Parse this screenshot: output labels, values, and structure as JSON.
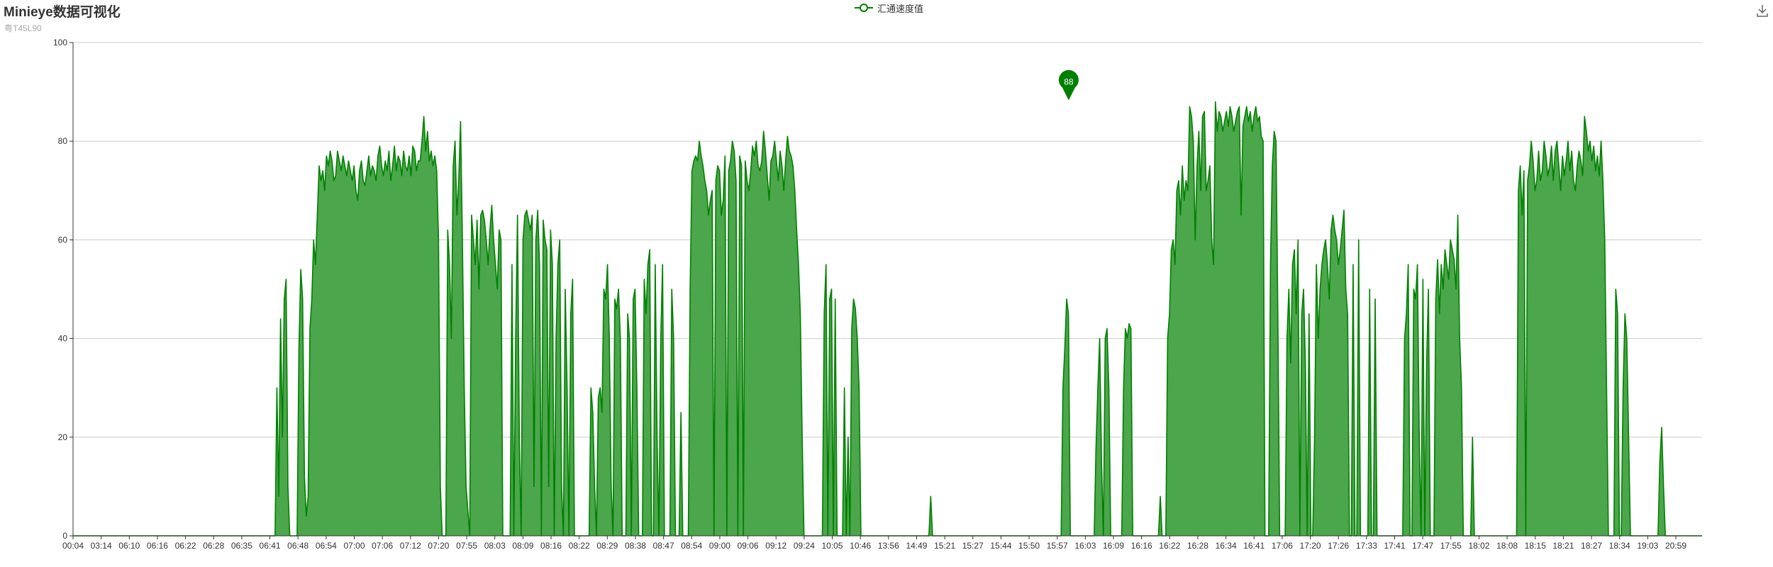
{
  "header": {
    "title": "Minieye数据可视化",
    "subtitle": "粤T45L90"
  },
  "legend": {
    "label": "汇通速度值",
    "icon": "circle-line-icon"
  },
  "toolbox": {
    "icon": "download-icon"
  },
  "colors": {
    "series": "#008000",
    "area": "#4ca64c",
    "grid": "#cccccc",
    "axis": "#333333",
    "marker": "#008000"
  },
  "chart_data": {
    "type": "area",
    "ylim": [
      0,
      100
    ],
    "yticks": [
      0,
      20,
      40,
      60,
      80,
      100
    ],
    "xtick_labels": [
      "00:04",
      "03:14",
      "06:10",
      "06:16",
      "06:22",
      "06:28",
      "06:35",
      "06:41",
      "06:48",
      "06:54",
      "07:00",
      "07:06",
      "07:12",
      "07:20",
      "07:55",
      "08:03",
      "08:09",
      "08:16",
      "08:22",
      "08:29",
      "08:38",
      "08:47",
      "08:54",
      "09:00",
      "09:06",
      "09:12",
      "09:24",
      "10:05",
      "10:46",
      "13:56",
      "14:49",
      "15:21",
      "15:27",
      "15:44",
      "15:50",
      "15:57",
      "16:03",
      "16:09",
      "16:16",
      "16:22",
      "16:28",
      "16:34",
      "16:41",
      "17:06",
      "17:20",
      "17:26",
      "17:33",
      "17:41",
      "17:47",
      "17:55",
      "18:02",
      "18:08",
      "18:15",
      "18:21",
      "18:27",
      "18:34",
      "19:03",
      "20:59"
    ],
    "grid": "horizontal",
    "max_marker": {
      "label": "88",
      "value": 88,
      "category_index": 34.5
    },
    "series": [
      {
        "name": "汇通速度值",
        "values": [
          0,
          0,
          0,
          0,
          0,
          0,
          0,
          0,
          0,
          0,
          0,
          0,
          0,
          0,
          0,
          0,
          0,
          0,
          0,
          0,
          0,
          0,
          0,
          0,
          0,
          0,
          0,
          0,
          0,
          0,
          0,
          0,
          0,
          0,
          0,
          0,
          0,
          0,
          0,
          0,
          0,
          0,
          0,
          0,
          0,
          0,
          0,
          0,
          0,
          0,
          0,
          0,
          0,
          0,
          0,
          0,
          0,
          0,
          0,
          0,
          0,
          0,
          0,
          0,
          0,
          0,
          0,
          0,
          0,
          0,
          0,
          0,
          0,
          0,
          0,
          0,
          0,
          0,
          0,
          0,
          0,
          0,
          0,
          0,
          0,
          0,
          0,
          0,
          0,
          0,
          0,
          0,
          0,
          0,
          0,
          0,
          0,
          0,
          0,
          0,
          0,
          0,
          0,
          0,
          0,
          0,
          0,
          0,
          0,
          0,
          0,
          30,
          8,
          44,
          20,
          48,
          52,
          10,
          0,
          0,
          0,
          0,
          0,
          38,
          54,
          48,
          12,
          4,
          8,
          42,
          48,
          60,
          55,
          65,
          75,
          72,
          74,
          70,
          77,
          75,
          78,
          76,
          72,
          73,
          78,
          76,
          74,
          77,
          75,
          73,
          76,
          74,
          72,
          75,
          70,
          68,
          74,
          76,
          72,
          71,
          74,
          77,
          73,
          75,
          74,
          72,
          77,
          79,
          75,
          73,
          76,
          74,
          78,
          72,
          75,
          79,
          74,
          77,
          76,
          73,
          78,
          75,
          74,
          77,
          73,
          79,
          78,
          74,
          76,
          76,
          80,
          85,
          78,
          82,
          76,
          78,
          75,
          77,
          74,
          60,
          10,
          0,
          0,
          0,
          62,
          55,
          40,
          75,
          80,
          65,
          72,
          84,
          60,
          30,
          10,
          5,
          0,
          65,
          60,
          55,
          64,
          50,
          65,
          66,
          64,
          60,
          55,
          62,
          67,
          60,
          55,
          50,
          62,
          60,
          0,
          0,
          0,
          0,
          0,
          55,
          0,
          40,
          65,
          20,
          0,
          60,
          65,
          66,
          64,
          62,
          65,
          10,
          60,
          66,
          55,
          0,
          64,
          60,
          58,
          10,
          62,
          55,
          0,
          40,
          55,
          60,
          10,
          0,
          50,
          30,
          0,
          45,
          52,
          0,
          0,
          0,
          0,
          0,
          0,
          0,
          0,
          0,
          30,
          25,
          10,
          0,
          28,
          30,
          25,
          50,
          48,
          55,
          40,
          10,
          0,
          48,
          46,
          50,
          40,
          0,
          0,
          0,
          45,
          40,
          0,
          48,
          50,
          30,
          0,
          0,
          0,
          52,
          45,
          55,
          58,
          0,
          0,
          55,
          20,
          0,
          40,
          55,
          0,
          0,
          0,
          0,
          50,
          40,
          0,
          0,
          0,
          25,
          0,
          0,
          0,
          0,
          50,
          74,
          76,
          77,
          76,
          80,
          77,
          75,
          72,
          70,
          65,
          68,
          70,
          0,
          72,
          75,
          74,
          65,
          68,
          77,
          0,
          74,
          76,
          80,
          78,
          72,
          0,
          77,
          75,
          0,
          76,
          72,
          70,
          74,
          79,
          77,
          80,
          75,
          74,
          76,
          82,
          78,
          73,
          68,
          76,
          77,
          80,
          76,
          72,
          78,
          75,
          70,
          76,
          81,
          78,
          77,
          75,
          70,
          62,
          55,
          45,
          20,
          0,
          0,
          0,
          0,
          0,
          0,
          0,
          0,
          0,
          0,
          0,
          45,
          55,
          0,
          48,
          50,
          0,
          48,
          0,
          0,
          0,
          0,
          30,
          0,
          20,
          0,
          42,
          48,
          46,
          40,
          30,
          0,
          0,
          0,
          0,
          0,
          0,
          0,
          0,
          0,
          0,
          0,
          0,
          0,
          0,
          0,
          0,
          0,
          0,
          0,
          0,
          0,
          0,
          0,
          0,
          0,
          0,
          0,
          0,
          0,
          0,
          0,
          0,
          0,
          0,
          0,
          0,
          0,
          0,
          8,
          0,
          0,
          0,
          0,
          0,
          0,
          0,
          0,
          0,
          0,
          0,
          0,
          0,
          0,
          0,
          0,
          0,
          0,
          0,
          0,
          0,
          0,
          0,
          0,
          0,
          0,
          0,
          0,
          0,
          0,
          0,
          0,
          0,
          0,
          0,
          0,
          0,
          0,
          0,
          0,
          0,
          0,
          0,
          0,
          0,
          0,
          0,
          0,
          0,
          0,
          0,
          0,
          0,
          0,
          0,
          0,
          0,
          0,
          0,
          0,
          0,
          0,
          0,
          0,
          0,
          0,
          0,
          0,
          0,
          0,
          0,
          30,
          38,
          48,
          45,
          0,
          0,
          0,
          0,
          0,
          0,
          0,
          0,
          0,
          0,
          0,
          0,
          0,
          0,
          18,
          30,
          40,
          15,
          0,
          40,
          42,
          30,
          0,
          0,
          0,
          0,
          0,
          0,
          0,
          30,
          42,
          40,
          43,
          42,
          0,
          0,
          0,
          0,
          0,
          0,
          0,
          0,
          0,
          0,
          0,
          0,
          0,
          0,
          0,
          8,
          0,
          0,
          0,
          40,
          45,
          58,
          60,
          55,
          70,
          72,
          65,
          75,
          68,
          72,
          70,
          87,
          85,
          80,
          60,
          75,
          82,
          70,
          85,
          86,
          70,
          72,
          75,
          60,
          55,
          88,
          82,
          86,
          85,
          82,
          84,
          86,
          83,
          87,
          85,
          82,
          84,
          86,
          87,
          65,
          83,
          85,
          87,
          84,
          86,
          82,
          85,
          87,
          84,
          85,
          81,
          80,
          0,
          0,
          0,
          55,
          75,
          82,
          80,
          45,
          0,
          0,
          0,
          0,
          40,
          50,
          35,
          55,
          58,
          45,
          60,
          0,
          45,
          50,
          35,
          0,
          45,
          0,
          0,
          20,
          55,
          40,
          50,
          55,
          58,
          60,
          55,
          48,
          62,
          65,
          62,
          60,
          55,
          58,
          62,
          66,
          50,
          45,
          0,
          0,
          55,
          0,
          0,
          60,
          0,
          0,
          0,
          0,
          0,
          50,
          0,
          0,
          48,
          0,
          0,
          0,
          0,
          0,
          0,
          0,
          0,
          0,
          0,
          0,
          0,
          0,
          0,
          0,
          40,
          45,
          55,
          0,
          0,
          50,
          48,
          55,
          20,
          0,
          52,
          0,
          35,
          50,
          0,
          0,
          0,
          48,
          56,
          45,
          55,
          50,
          58,
          55,
          52,
          60,
          58,
          56,
          50,
          65,
          40,
          30,
          0,
          0,
          0,
          0,
          0,
          20,
          0,
          0,
          0,
          0,
          0,
          0,
          0,
          0,
          0,
          0,
          0,
          0,
          0,
          0,
          0,
          0,
          0,
          0,
          0,
          0,
          0,
          0,
          0,
          0,
          70,
          75,
          65,
          74,
          0,
          72,
          75,
          80,
          76,
          70,
          72,
          78,
          72,
          74,
          80,
          77,
          73,
          75,
          79,
          72,
          78,
          80,
          75,
          70,
          77,
          73,
          76,
          80,
          74,
          78,
          72,
          70,
          75,
          78,
          76,
          73,
          85,
          82,
          78,
          80,
          76,
          79,
          74,
          77,
          73,
          80,
          72,
          60,
          30,
          0,
          0,
          0,
          0,
          50,
          45,
          0,
          0,
          30,
          45,
          40,
          20,
          0,
          0,
          0,
          0,
          0,
          0,
          0,
          0,
          0,
          0,
          0,
          0,
          0,
          0,
          0,
          0,
          15,
          22,
          10,
          0,
          0,
          0,
          0,
          0,
          0,
          0,
          0,
          0,
          0,
          0,
          0,
          0,
          0,
          0,
          0,
          0,
          0,
          0,
          0,
          0
        ]
      }
    ]
  }
}
